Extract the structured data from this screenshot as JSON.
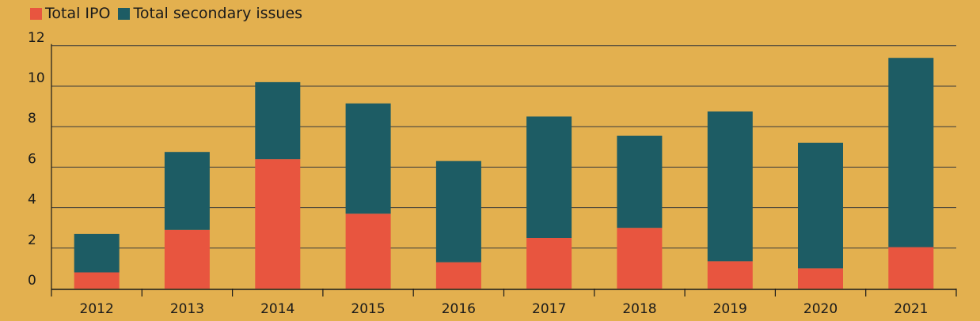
{
  "chart_data": {
    "type": "bar",
    "stacked": true,
    "categories": [
      "2012",
      "2013",
      "2014",
      "2015",
      "2016",
      "2017",
      "2018",
      "2019",
      "2020",
      "2021"
    ],
    "series": [
      {
        "name": "Total IPO",
        "color": "#e8553f",
        "values": [
          0.8,
          2.9,
          6.4,
          3.7,
          1.3,
          2.5,
          3.0,
          1.35,
          1.0,
          2.05
        ]
      },
      {
        "name": "Total secondary issues",
        "color": "#1d5c64",
        "values": [
          1.9,
          3.85,
          3.8,
          5.45,
          5.0,
          6.0,
          4.55,
          7.4,
          6.2,
          9.35
        ]
      }
    ],
    "ylim": [
      0,
      12
    ],
    "yticks": [
      "0",
      "2",
      "4",
      "6",
      "8",
      "10",
      "12"
    ],
    "grid": true,
    "legend_position": "top-left"
  }
}
